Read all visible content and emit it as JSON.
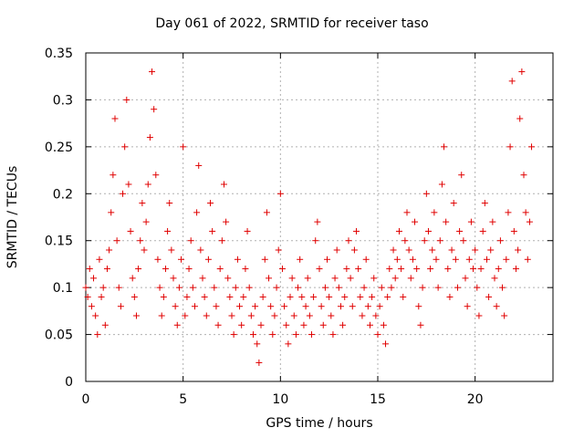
{
  "chart_data": {
    "type": "scatter",
    "title": "Day 061 of 2022, SRMTID for receiver taso",
    "xlabel": "GPS time / hours",
    "ylabel": "SRMTID / TECUs",
    "xlim": [
      0,
      24
    ],
    "ylim": [
      0,
      0.35
    ],
    "xticks": [
      0,
      5,
      10,
      15,
      20
    ],
    "xtick_labels": [
      "0",
      "5",
      "10",
      "15",
      "20"
    ],
    "yticks": [
      0,
      0.05,
      0.1,
      0.15,
      0.2,
      0.25,
      0.3,
      0.35
    ],
    "ytick_labels": [
      "0",
      "0.05",
      "0.1",
      "0.15",
      "0.2",
      "0.25",
      "0.3",
      "0.35"
    ],
    "grid": true,
    "marker": "plus",
    "color": "#e00000",
    "series": [
      {
        "name": "SRMTID",
        "points": [
          [
            0.0,
            0.1
          ],
          [
            0.1,
            0.09
          ],
          [
            0.2,
            0.12
          ],
          [
            0.3,
            0.08
          ],
          [
            0.4,
            0.11
          ],
          [
            0.5,
            0.07
          ],
          [
            0.6,
            0.05
          ],
          [
            0.7,
            0.13
          ],
          [
            0.8,
            0.09
          ],
          [
            0.9,
            0.1
          ],
          [
            1.0,
            0.06
          ],
          [
            1.1,
            0.12
          ],
          [
            1.2,
            0.14
          ],
          [
            1.3,
            0.18
          ],
          [
            1.4,
            0.22
          ],
          [
            1.5,
            0.28
          ],
          [
            1.6,
            0.15
          ],
          [
            1.7,
            0.1
          ],
          [
            1.8,
            0.08
          ],
          [
            1.9,
            0.2
          ],
          [
            2.0,
            0.25
          ],
          [
            2.1,
            0.3
          ],
          [
            2.2,
            0.21
          ],
          [
            2.3,
            0.16
          ],
          [
            2.4,
            0.11
          ],
          [
            2.5,
            0.09
          ],
          [
            2.6,
            0.07
          ],
          [
            2.7,
            0.12
          ],
          [
            2.8,
            0.15
          ],
          [
            2.9,
            0.19
          ],
          [
            3.0,
            0.14
          ],
          [
            3.1,
            0.17
          ],
          [
            3.2,
            0.21
          ],
          [
            3.3,
            0.26
          ],
          [
            3.4,
            0.33
          ],
          [
            3.5,
            0.29
          ],
          [
            3.6,
            0.22
          ],
          [
            3.7,
            0.13
          ],
          [
            3.8,
            0.1
          ],
          [
            3.9,
            0.07
          ],
          [
            4.0,
            0.09
          ],
          [
            4.1,
            0.12
          ],
          [
            4.2,
            0.16
          ],
          [
            4.3,
            0.19
          ],
          [
            4.4,
            0.14
          ],
          [
            4.5,
            0.11
          ],
          [
            4.6,
            0.08
          ],
          [
            4.7,
            0.06
          ],
          [
            4.8,
            0.1
          ],
          [
            4.9,
            0.13
          ],
          [
            5.0,
            0.25
          ],
          [
            5.1,
            0.07
          ],
          [
            5.2,
            0.09
          ],
          [
            5.3,
            0.12
          ],
          [
            5.4,
            0.15
          ],
          [
            5.5,
            0.1
          ],
          [
            5.6,
            0.08
          ],
          [
            5.7,
            0.18
          ],
          [
            5.8,
            0.23
          ],
          [
            5.9,
            0.14
          ],
          [
            6.0,
            0.11
          ],
          [
            6.1,
            0.09
          ],
          [
            6.2,
            0.07
          ],
          [
            6.3,
            0.13
          ],
          [
            6.4,
            0.19
          ],
          [
            6.5,
            0.16
          ],
          [
            6.6,
            0.1
          ],
          [
            6.7,
            0.08
          ],
          [
            6.8,
            0.06
          ],
          [
            6.9,
            0.12
          ],
          [
            7.0,
            0.15
          ],
          [
            7.1,
            0.21
          ],
          [
            7.2,
            0.17
          ],
          [
            7.3,
            0.11
          ],
          [
            7.4,
            0.09
          ],
          [
            7.5,
            0.07
          ],
          [
            7.6,
            0.05
          ],
          [
            7.7,
            0.1
          ],
          [
            7.8,
            0.13
          ],
          [
            7.9,
            0.08
          ],
          [
            8.0,
            0.06
          ],
          [
            8.1,
            0.09
          ],
          [
            8.2,
            0.12
          ],
          [
            8.3,
            0.16
          ],
          [
            8.4,
            0.1
          ],
          [
            8.5,
            0.07
          ],
          [
            8.6,
            0.05
          ],
          [
            8.7,
            0.08
          ],
          [
            8.8,
            0.04
          ],
          [
            8.9,
            0.02
          ],
          [
            9.0,
            0.06
          ],
          [
            9.1,
            0.09
          ],
          [
            9.2,
            0.13
          ],
          [
            9.3,
            0.18
          ],
          [
            9.4,
            0.11
          ],
          [
            9.5,
            0.08
          ],
          [
            9.6,
            0.05
          ],
          [
            9.7,
            0.07
          ],
          [
            9.8,
            0.1
          ],
          [
            9.9,
            0.14
          ],
          [
            10.0,
            0.2
          ],
          [
            10.1,
            0.12
          ],
          [
            10.2,
            0.08
          ],
          [
            10.3,
            0.06
          ],
          [
            10.4,
            0.04
          ],
          [
            10.5,
            0.09
          ],
          [
            10.6,
            0.11
          ],
          [
            10.7,
            0.07
          ],
          [
            10.8,
            0.05
          ],
          [
            10.9,
            0.1
          ],
          [
            11.0,
            0.13
          ],
          [
            11.1,
            0.09
          ],
          [
            11.2,
            0.06
          ],
          [
            11.3,
            0.08
          ],
          [
            11.4,
            0.11
          ],
          [
            11.5,
            0.07
          ],
          [
            11.6,
            0.05
          ],
          [
            11.7,
            0.09
          ],
          [
            11.8,
            0.15
          ],
          [
            11.9,
            0.17
          ],
          [
            12.0,
            0.12
          ],
          [
            12.1,
            0.08
          ],
          [
            12.2,
            0.06
          ],
          [
            12.3,
            0.1
          ],
          [
            12.4,
            0.13
          ],
          [
            12.5,
            0.09
          ],
          [
            12.6,
            0.07
          ],
          [
            12.7,
            0.05
          ],
          [
            12.8,
            0.11
          ],
          [
            12.9,
            0.14
          ],
          [
            13.0,
            0.1
          ],
          [
            13.1,
            0.08
          ],
          [
            13.2,
            0.06
          ],
          [
            13.3,
            0.09
          ],
          [
            13.4,
            0.12
          ],
          [
            13.5,
            0.15
          ],
          [
            13.6,
            0.11
          ],
          [
            13.7,
            0.08
          ],
          [
            13.8,
            0.14
          ],
          [
            13.9,
            0.16
          ],
          [
            14.0,
            0.12
          ],
          [
            14.1,
            0.09
          ],
          [
            14.2,
            0.07
          ],
          [
            14.3,
            0.1
          ],
          [
            14.4,
            0.13
          ],
          [
            14.5,
            0.08
          ],
          [
            14.6,
            0.06
          ],
          [
            14.7,
            0.09
          ],
          [
            14.8,
            0.11
          ],
          [
            14.9,
            0.07
          ],
          [
            15.0,
            0.05
          ],
          [
            15.1,
            0.08
          ],
          [
            15.2,
            0.1
          ],
          [
            15.3,
            0.06
          ],
          [
            15.4,
            0.04
          ],
          [
            15.5,
            0.09
          ],
          [
            15.6,
            0.12
          ],
          [
            15.7,
            0.1
          ],
          [
            15.8,
            0.14
          ],
          [
            15.9,
            0.11
          ],
          [
            16.0,
            0.13
          ],
          [
            16.1,
            0.16
          ],
          [
            16.2,
            0.12
          ],
          [
            16.3,
            0.09
          ],
          [
            16.4,
            0.15
          ],
          [
            16.5,
            0.18
          ],
          [
            16.6,
            0.14
          ],
          [
            16.7,
            0.11
          ],
          [
            16.8,
            0.13
          ],
          [
            16.9,
            0.17
          ],
          [
            17.0,
            0.12
          ],
          [
            17.1,
            0.08
          ],
          [
            17.2,
            0.06
          ],
          [
            17.3,
            0.1
          ],
          [
            17.4,
            0.15
          ],
          [
            17.5,
            0.2
          ],
          [
            17.6,
            0.16
          ],
          [
            17.7,
            0.12
          ],
          [
            17.8,
            0.14
          ],
          [
            17.9,
            0.18
          ],
          [
            18.0,
            0.13
          ],
          [
            18.1,
            0.1
          ],
          [
            18.2,
            0.15
          ],
          [
            18.3,
            0.21
          ],
          [
            18.4,
            0.25
          ],
          [
            18.5,
            0.17
          ],
          [
            18.6,
            0.12
          ],
          [
            18.7,
            0.09
          ],
          [
            18.8,
            0.14
          ],
          [
            18.9,
            0.19
          ],
          [
            19.0,
            0.13
          ],
          [
            19.1,
            0.1
          ],
          [
            19.2,
            0.16
          ],
          [
            19.3,
            0.22
          ],
          [
            19.4,
            0.15
          ],
          [
            19.5,
            0.11
          ],
          [
            19.6,
            0.08
          ],
          [
            19.7,
            0.13
          ],
          [
            19.8,
            0.17
          ],
          [
            19.9,
            0.12
          ],
          [
            20.0,
            0.14
          ],
          [
            20.1,
            0.1
          ],
          [
            20.2,
            0.07
          ],
          [
            20.3,
            0.12
          ],
          [
            20.4,
            0.16
          ],
          [
            20.5,
            0.19
          ],
          [
            20.6,
            0.13
          ],
          [
            20.7,
            0.09
          ],
          [
            20.8,
            0.14
          ],
          [
            20.9,
            0.17
          ],
          [
            21.0,
            0.11
          ],
          [
            21.1,
            0.08
          ],
          [
            21.2,
            0.12
          ],
          [
            21.3,
            0.15
          ],
          [
            21.4,
            0.1
          ],
          [
            21.5,
            0.07
          ],
          [
            21.6,
            0.13
          ],
          [
            21.7,
            0.18
          ],
          [
            21.8,
            0.25
          ],
          [
            21.9,
            0.32
          ],
          [
            22.0,
            0.16
          ],
          [
            22.1,
            0.12
          ],
          [
            22.2,
            0.14
          ],
          [
            22.3,
            0.28
          ],
          [
            22.4,
            0.33
          ],
          [
            22.5,
            0.22
          ],
          [
            22.6,
            0.18
          ],
          [
            22.7,
            0.13
          ],
          [
            22.8,
            0.17
          ],
          [
            22.9,
            0.25
          ]
        ]
      }
    ]
  }
}
